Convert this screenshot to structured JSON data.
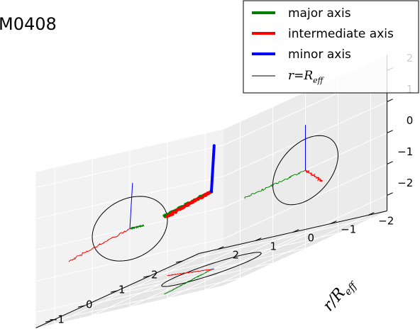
{
  "title": "M0408",
  "chart_data": {
    "type": "line",
    "projection": "3d",
    "title": "M0408",
    "axes": {
      "x": {
        "label": "",
        "lim": [
          -2.5,
          2.5
        ],
        "ticks": [
          "2",
          "1",
          "0",
          "−1",
          "−2"
        ]
      },
      "y": {
        "label_main": "r/R",
        "label_sub": "eff",
        "lim": [
          -2.5,
          2.5
        ],
        "ticks": [
          "−2",
          "−1",
          "0",
          "1",
          "2"
        ]
      },
      "z": {
        "label": "",
        "lim": [
          -2.5,
          2.5
        ],
        "ticks": [
          "−2",
          "−1",
          "0",
          "1",
          "2"
        ]
      }
    },
    "grid": true,
    "legend": {
      "placement": "top-right",
      "entries": [
        {
          "label": "major axis",
          "color": "#008000",
          "style": "line"
        },
        {
          "label": "intermediate axis",
          "color": "#ff0000",
          "style": "line"
        },
        {
          "label": "minor axis",
          "color": "#0000ff",
          "style": "line"
        },
        {
          "label_math": "r=R",
          "label_sub": "eff",
          "color": "#000000",
          "style": "thin-line"
        }
      ]
    },
    "series": [
      {
        "name": "major axis",
        "color": "#008000",
        "direction": [
          -0.2,
          -0.98,
          0.0
        ],
        "length": 1.9,
        "wiggle": 0.06
      },
      {
        "name": "intermediate axis",
        "color": "#ff0000",
        "direction": [
          0.95,
          0.3,
          -0.35
        ],
        "length": 1.8,
        "wiggle": 0.06
      },
      {
        "name": "minor axis",
        "color": "#0000ff",
        "direction": [
          -0.05,
          0.0,
          1.0
        ],
        "length": 1.45,
        "wiggle": 0.0
      }
    ],
    "reference_circle": {
      "label": "r=R_eff",
      "radius": 1.0,
      "color": "#000000"
    }
  }
}
